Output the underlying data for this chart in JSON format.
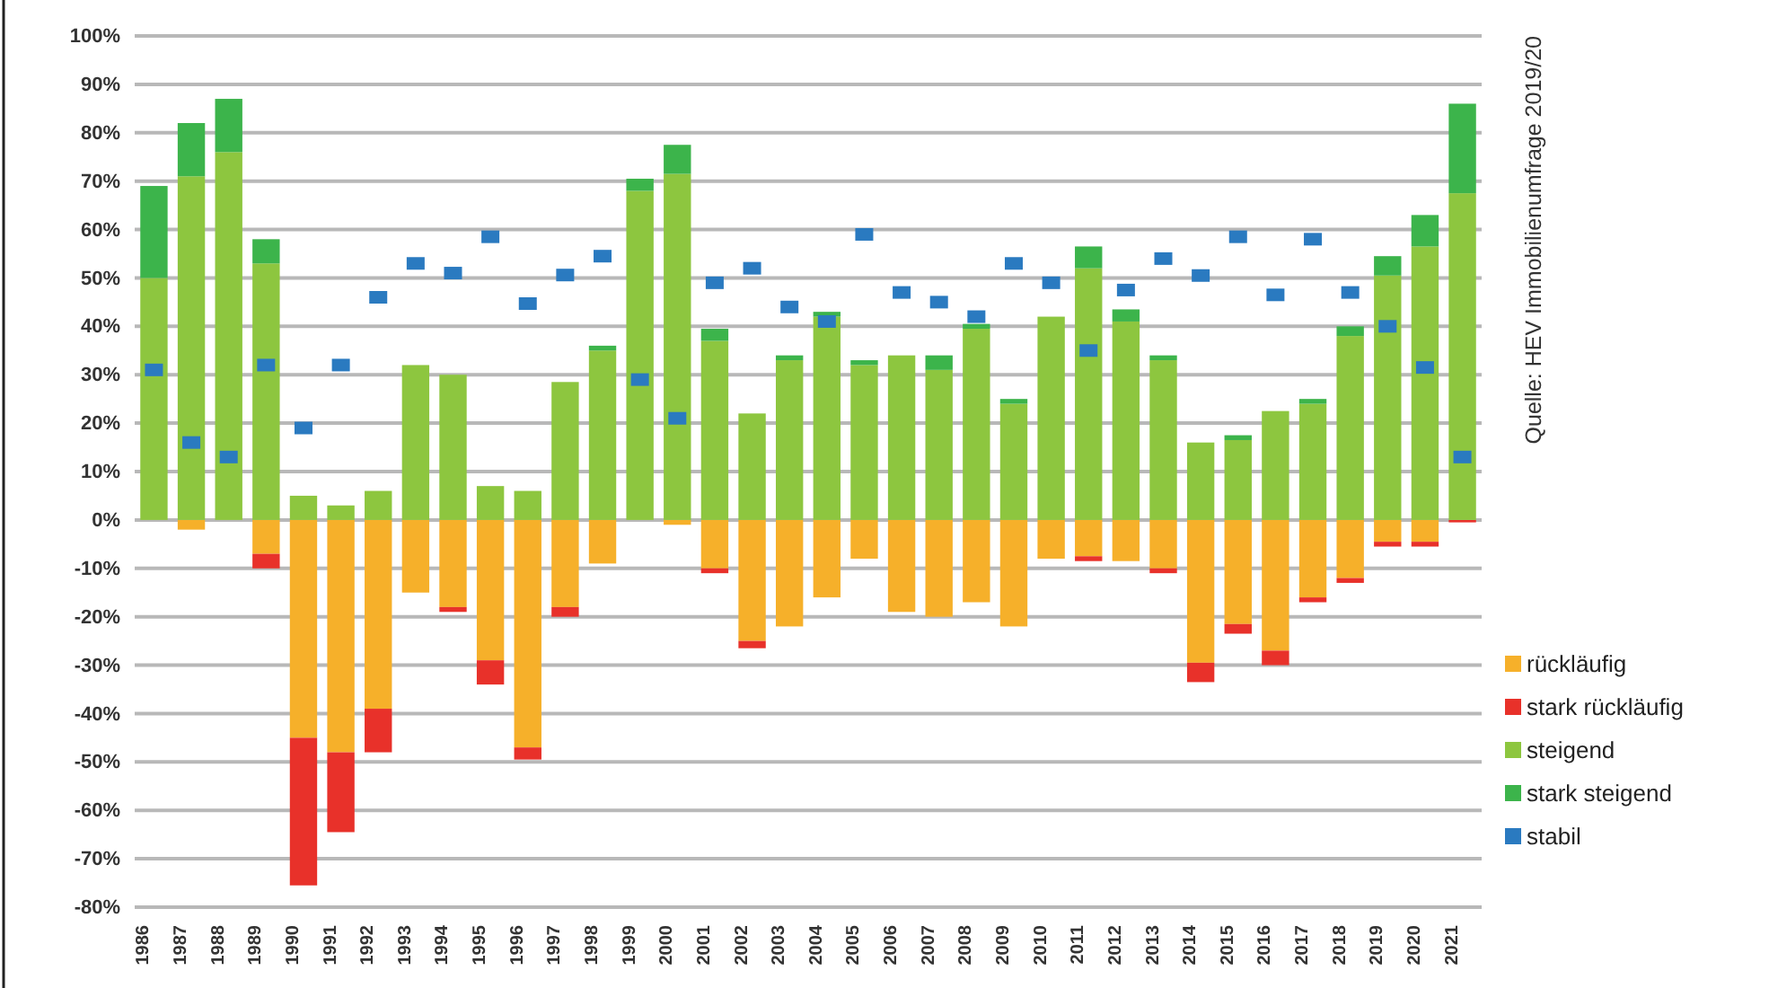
{
  "chart_data": {
    "type": "bar",
    "stacked": true,
    "categories": [
      "1986",
      "1987",
      "1988",
      "1989",
      "1990",
      "1991",
      "1992",
      "1993",
      "1994",
      "1995",
      "1996",
      "1997",
      "1998",
      "1999",
      "2000",
      "2001",
      "2002",
      "2003",
      "2004",
      "2005",
      "2006",
      "2007",
      "2008",
      "2009",
      "2010",
      "2011",
      "2012",
      "2013",
      "2014",
      "2015",
      "2016",
      "2017",
      "2018",
      "2019",
      "2020",
      "2021"
    ],
    "series": [
      {
        "name": "rückläufig",
        "color": "#f6b02a",
        "values": [
          0,
          -2,
          0,
          -7,
          -45,
          -48,
          -39,
          -15,
          -18,
          -29,
          -47,
          -18,
          -9,
          0,
          -1,
          -10,
          -25,
          -22,
          -16,
          -8,
          -19,
          -20,
          -17,
          -22,
          -8,
          -7.5,
          -8.5,
          -10,
          -29.5,
          -21.5,
          -27,
          -16,
          -12,
          -4.5,
          -4.5,
          0
        ]
      },
      {
        "name": "stark rückläufig",
        "color": "#e8312a",
        "values": [
          0,
          0,
          0,
          -3,
          -30.5,
          -16.5,
          -9,
          0,
          -1,
          -5,
          -2.5,
          -2,
          0,
          0,
          0,
          -1,
          -1.5,
          0,
          0,
          0,
          0,
          0,
          0,
          0,
          0,
          -1,
          0,
          -1,
          -4,
          -2,
          -3,
          -1,
          -1,
          -1,
          -1,
          -0.5
        ]
      },
      {
        "name": "steigend",
        "color": "#8dc63f",
        "values": [
          50,
          71,
          76,
          53,
          5,
          3,
          6,
          32,
          30,
          7,
          6,
          28.5,
          35,
          68,
          71.5,
          37,
          22,
          33,
          42,
          32,
          34,
          31,
          39.5,
          24,
          42,
          52,
          41,
          33,
          16,
          16.5,
          22.5,
          24,
          38,
          50.5,
          56.5,
          67.5
        ]
      },
      {
        "name": "stark steigend",
        "color": "#3cb44b",
        "values": [
          19,
          11,
          11,
          5,
          0,
          0,
          0,
          0,
          0,
          0,
          0,
          0,
          1,
          2.5,
          6,
          2.5,
          0,
          1,
          1,
          1,
          0,
          3,
          1,
          1,
          0,
          4.5,
          2.5,
          1,
          0,
          1,
          0,
          1,
          2,
          4,
          6.5,
          18.5
        ]
      },
      {
        "name": "stabil",
        "type": "scatter",
        "marker": "square",
        "color": "#2a7ac0",
        "values": [
          31,
          16,
          13,
          32,
          19,
          32,
          46,
          53,
          51,
          58.5,
          44.7,
          50.6,
          54.5,
          29,
          21,
          49,
          52,
          44,
          41,
          59,
          47,
          45,
          42,
          53,
          49,
          35,
          47.5,
          54,
          50.5,
          58.5,
          46.5,
          58,
          47,
          40,
          31.5,
          13
        ]
      }
    ],
    "ylim": [
      -80,
      100
    ],
    "yticks": [
      {
        "value": -80,
        "label": "-80%"
      },
      {
        "value": -70,
        "label": "-70%"
      },
      {
        "value": -60,
        "label": "-60%"
      },
      {
        "value": -50,
        "label": "-50%"
      },
      {
        "value": -40,
        "label": "-40%"
      },
      {
        "value": -30,
        "label": "-30%"
      },
      {
        "value": -20,
        "label": "-20%"
      },
      {
        "value": -10,
        "label": "-10%"
      },
      {
        "value": 0,
        "label": "0%"
      },
      {
        "value": 10,
        "label": "10%"
      },
      {
        "value": 20,
        "label": "20%"
      },
      {
        "value": 30,
        "label": "30%"
      },
      {
        "value": 40,
        "label": "40%"
      },
      {
        "value": 50,
        "label": "50%"
      },
      {
        "value": 60,
        "label": "60%"
      },
      {
        "value": 70,
        "label": "70%"
      },
      {
        "value": 80,
        "label": "80%"
      },
      {
        "value": 90,
        "label": "90%"
      },
      {
        "value": 100,
        "label": "100%"
      }
    ],
    "grid": "y",
    "legend": "right",
    "annotations": [
      "Quelle: HEV Immobilienumfrage 2019/20"
    ]
  }
}
